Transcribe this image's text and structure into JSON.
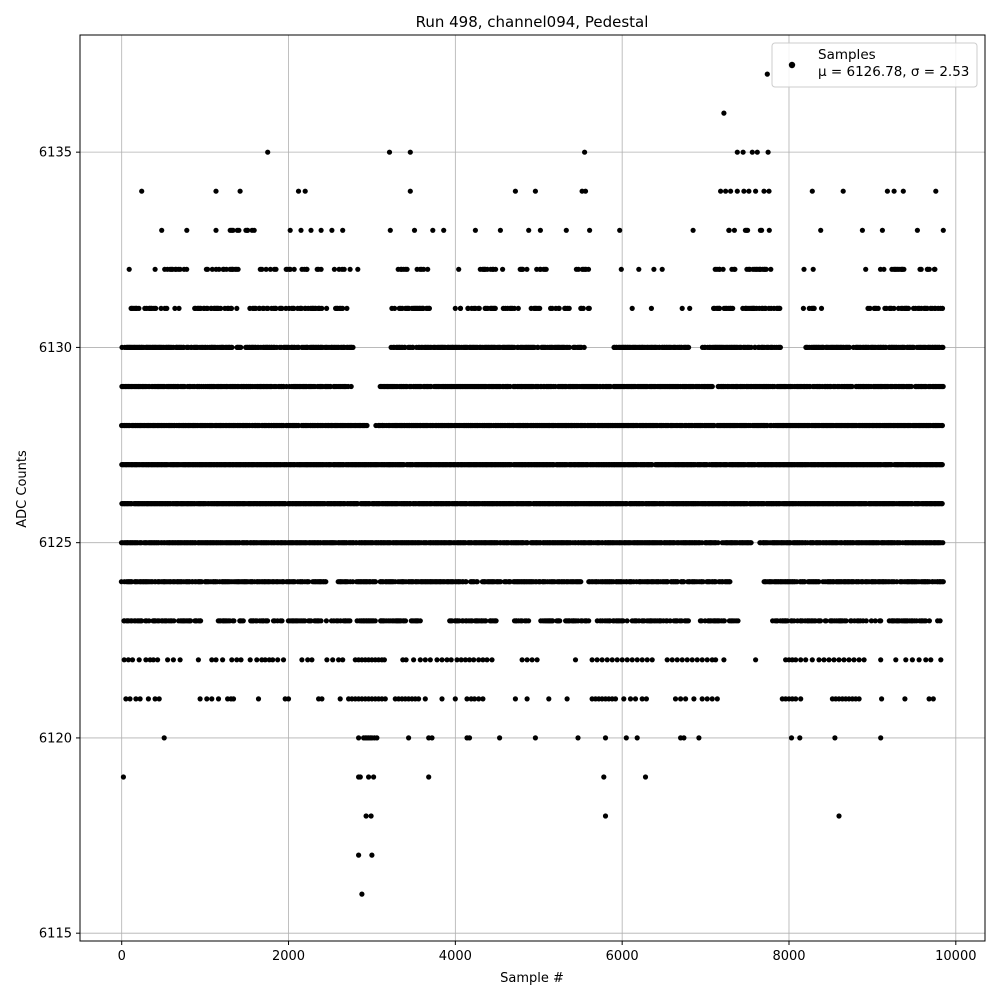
{
  "chart_data": {
    "type": "scatter",
    "title": "Run 498, channel094, Pedestal",
    "xlabel": "Sample #",
    "ylabel": "ADC Counts",
    "xlim": [
      -500,
      10350
    ],
    "ylim": [
      6114.8,
      6138.0
    ],
    "x_ticks": [
      0,
      2000,
      4000,
      6000,
      8000,
      10000
    ],
    "y_ticks": [
      6115,
      6120,
      6125,
      6130,
      6135
    ],
    "grid": true,
    "legend_position": "top-right",
    "series": [
      {
        "name": "Samples",
        "color": "#000000",
        "marker": "circle"
      }
    ],
    "legend": {
      "entry": "Samples",
      "stats": "μ = 6126.78, σ = 2.53"
    },
    "n_samples": 10000,
    "levels": [
      {
        "y": 6115,
        "x": []
      },
      {
        "y": 6116,
        "x": [
          2880
        ]
      },
      {
        "y": 6117,
        "x": [
          2840,
          3000
        ]
      },
      {
        "y": 6118,
        "x": [
          2930,
          2990,
          5800,
          8600
        ]
      },
      {
        "y": 6119,
        "x": [
          20,
          2840,
          2860,
          2960,
          3020,
          3680,
          5780,
          6280
        ]
      },
      {
        "y": 6120,
        "x": [
          510,
          2840,
          2900,
          2920,
          2940,
          2960,
          2980,
          3000,
          3030,
          3060,
          3440,
          3680,
          3720,
          4140,
          4170,
          4530,
          4960,
          5470,
          5800,
          6050,
          6180,
          6700,
          6740,
          6920,
          8030,
          8130,
          8550,
          9100
        ]
      },
      {
        "y": 6121,
        "x": [
          50,
          100,
          170,
          220,
          320,
          400,
          450,
          940,
          1020,
          1080,
          1160,
          1270,
          1310,
          1340,
          1640,
          1960,
          2000,
          2360,
          2400,
          2620,
          2720,
          2760,
          2800,
          2840,
          2880,
          2920,
          2960,
          3000,
          3040,
          3080,
          3120,
          3160,
          3280,
          3320,
          3360,
          3400,
          3440,
          3480,
          3520,
          3560,
          3640,
          3840,
          4000,
          4140,
          4190,
          4230,
          4280,
          4330,
          4720,
          4860,
          5120,
          5340,
          5640,
          5680,
          5720,
          5760,
          5800,
          5840,
          5880,
          5920,
          6020,
          6100,
          6160,
          6240,
          6290,
          6640,
          6700,
          6760,
          6860,
          6960,
          7020,
          7080,
          7140,
          7920,
          7960,
          8000,
          8040,
          8080,
          8140,
          8520,
          8560,
          8600,
          8640,
          8680,
          8720,
          8760,
          8800,
          8840,
          9110,
          9390,
          9680,
          9730
        ]
      },
      {
        "y": 6122,
        "x": [
          30,
          80,
          130,
          210,
          290,
          340,
          380,
          430,
          550,
          620,
          700,
          920,
          1080,
          1130,
          1210,
          1320,
          1380,
          1430,
          1540,
          1620,
          1680,
          1720,
          1770,
          1810,
          1870,
          1940,
          2160,
          2230,
          2280,
          2460,
          2530,
          2600,
          2650,
          2800,
          2840,
          2880,
          2920,
          2960,
          3000,
          3040,
          3080,
          3120,
          3150,
          3370,
          3410,
          3500,
          3580,
          3640,
          3700,
          3780,
          3840,
          3900,
          3950,
          4020,
          4070,
          4120,
          4170,
          4220,
          4280,
          4330,
          4380,
          4440,
          4800,
          4860,
          4920,
          4980,
          5440,
          5640,
          5700,
          5760,
          5820,
          5880,
          5940,
          6000,
          6060,
          6120,
          6180,
          6240,
          6300,
          6360,
          6540,
          6600,
          6660,
          6720,
          6780,
          6840,
          6900,
          6960,
          7020,
          7080,
          7120,
          7220,
          7600,
          7960,
          8000,
          8040,
          8080,
          8140,
          8200,
          8280,
          8360,
          8420,
          8480,
          8540,
          8600,
          8660,
          8720,
          8780,
          8840,
          8900,
          9100,
          9280,
          9400,
          9480,
          9560,
          9640,
          9700,
          9820
        ]
      }
    ]
  }
}
